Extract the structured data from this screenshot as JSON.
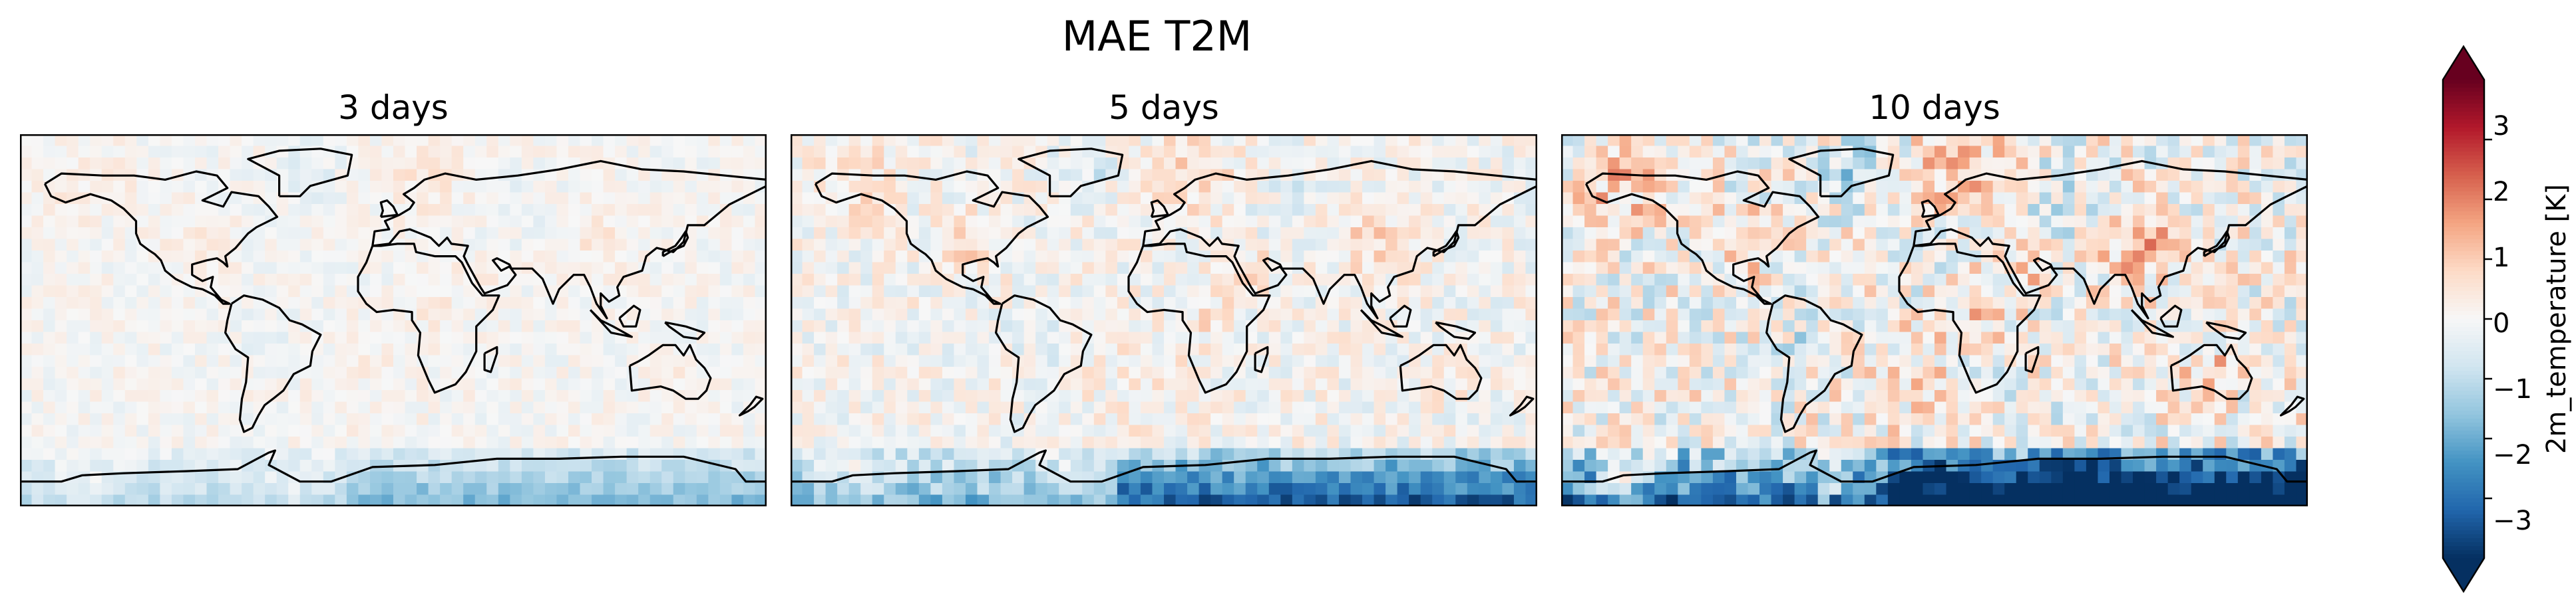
{
  "title": "MAE T2M",
  "panels": [
    {
      "title": "3 days",
      "intensity": 0.85,
      "key": "d3"
    },
    {
      "title": "5 days",
      "intensity": 1.55,
      "key": "d5"
    },
    {
      "title": "10 days",
      "intensity": 2.7,
      "key": "d10"
    }
  ],
  "colorbar": {
    "label": "2m_temperature [K]",
    "ticks": [
      "3",
      "2",
      "1",
      "0",
      "−1",
      "−2",
      "−3"
    ],
    "tick_values": [
      3,
      2,
      1,
      0,
      -1,
      -2,
      -3
    ],
    "range": [
      -4,
      4
    ],
    "extend": "both",
    "colormap": "RdBu_r"
  },
  "chart_data": {
    "type": "heatmap",
    "title": "MAE T2M",
    "subplots": [
      "3 days",
      "5 days",
      "10 days"
    ],
    "colorbar_label": "2m_temperature [K]",
    "color_range": [
      -4,
      4
    ],
    "colormap": "RdBu_r"
  }
}
